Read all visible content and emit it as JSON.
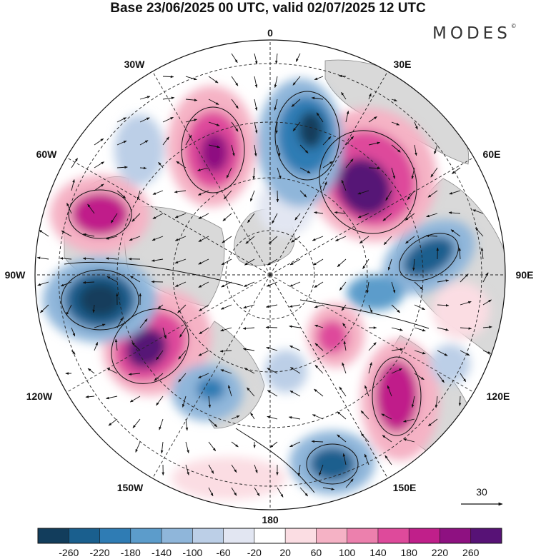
{
  "title": "Base 23/06/2025 00 UTC, valid 02/07/2025 12 UTC",
  "brand": "MODES",
  "brand_mark": "©",
  "longitude_labels": {
    "lon_0": "0",
    "lon_30e": "30E",
    "lon_60e": "60E",
    "lon_90e": "90E",
    "lon_120e": "120E",
    "lon_150e": "150E",
    "lon_180": "180",
    "lon_150w": "150W",
    "lon_120w": "120W",
    "lon_90w": "90W",
    "lon_60w": "60W",
    "lon_30w": "30W"
  },
  "vector_reference": {
    "label": "30",
    "icon": "arrow-right-icon"
  },
  "colorbar": {
    "labels": [
      "-260",
      "-220",
      "-180",
      "-140",
      "-100",
      "-60",
      "-20",
      "20",
      "60",
      "100",
      "140",
      "180",
      "220",
      "260"
    ],
    "colors": [
      "#123d5c",
      "#1a5f8e",
      "#2f7cb4",
      "#5c9ccb",
      "#8fb6da",
      "#bccfe7",
      "#e2e6f2",
      "#ffffff",
      "#fbdde3",
      "#f5b2c5",
      "#ec80ad",
      "#de4a9b",
      "#c01f8a",
      "#8e1181",
      "#571276"
    ]
  },
  "map_colors": {
    "land": "#d9d9d9",
    "coast": "#888888",
    "ocean": "#ffffff"
  },
  "anomaly_features": [
    {
      "name": "high-north-atlantic",
      "color": "#c01f8a"
    },
    {
      "name": "high-northern-europe",
      "color": "#8e1181"
    },
    {
      "name": "low-scandinavia",
      "color": "#1a5f8e"
    },
    {
      "name": "low-north-pacific",
      "color": "#123d5c"
    },
    {
      "name": "high-alaska",
      "color": "#8e1181"
    },
    {
      "name": "high-siberia",
      "color": "#de4a9b"
    },
    {
      "name": "low-east-asia",
      "color": "#1a5f8e"
    }
  ]
}
